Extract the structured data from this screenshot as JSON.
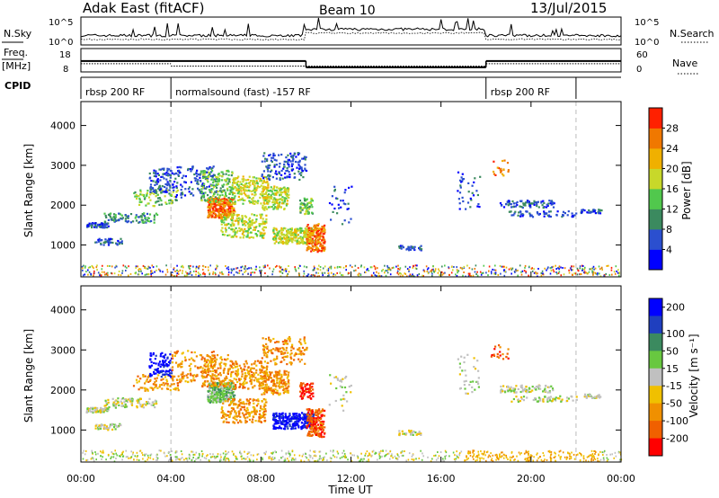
{
  "header": {
    "title": "Adak East (fitACF)",
    "beam": "Beam 10",
    "date": "13/Jul/2015"
  },
  "top_panels": {
    "nsky_label": "N.Sky",
    "nsearch_label": "N.Search",
    "nsky_ticks": [
      "10^5",
      "10^0"
    ],
    "nsearch_ticks": [
      "10^5",
      "10^0"
    ],
    "freq_label": "Freq.",
    "freq_unit": "[MHz]",
    "freq_ticks": [
      "18",
      "8"
    ],
    "nave_label": "Nave",
    "nave_ticks": [
      "60",
      "0"
    ],
    "cpid_label": "CPID",
    "cpid_segments": [
      {
        "label": "rbsp 200 RF",
        "start": 0,
        "end": 4
      },
      {
        "label": "normalsound (fast) -157 RF",
        "start": 4,
        "end": 18
      },
      {
        "label": "rbsp 200 RF",
        "start": 18,
        "end": 22
      }
    ],
    "freq_series": [
      {
        "start": 0,
        "end": 10,
        "value": 14.2
      },
      {
        "start": 10,
        "end": 18,
        "value": 10.3
      },
      {
        "start": 18,
        "end": 24,
        "value": 14.2
      }
    ],
    "nave_series": [
      {
        "start": 0,
        "end": 4,
        "value": 22
      },
      {
        "start": 4,
        "end": 18,
        "value": 15
      },
      {
        "start": 18,
        "end": 24,
        "value": 22
      }
    ]
  },
  "chart_data": [
    {
      "type": "heatmap",
      "parameter": "power",
      "ylabel": "Slant Range [km]",
      "ylim": [
        200,
        4600
      ],
      "yticks": [
        "1000",
        "2000",
        "3000",
        "4000"
      ],
      "colorbar_label": "Power [dB]",
      "colorbar_ticks": [
        "4",
        "8",
        "12",
        "16",
        "20",
        "24",
        "28"
      ],
      "colors": [
        "#0000ff",
        "#2b4fcf",
        "#3b8a5f",
        "#51c84d",
        "#c8d82a",
        "#f0b000",
        "#f07800",
        "#ff2000"
      ]
    },
    {
      "type": "heatmap",
      "parameter": "velocity",
      "ylabel": "Slant Range [km]",
      "ylim": [
        200,
        4600
      ],
      "yticks": [
        "1000",
        "2000",
        "3000",
        "4000"
      ],
      "colorbar_label": "Velocity [m s⁻¹]",
      "colorbar_ticks": [
        "200",
        "100",
        "50",
        "15",
        "-15",
        "-50",
        "-100",
        "-200"
      ],
      "colors": [
        "#0000ff",
        "#1f3fbf",
        "#3b8a5f",
        "#68c840",
        "#c0c0c0",
        "#f0c000",
        "#f09000",
        "#f06000",
        "#ff0000"
      ]
    }
  ],
  "xaxis": {
    "label": "Time UT",
    "ticks": [
      "00:00",
      "04:00",
      "08:00",
      "12:00",
      "16:00",
      "20:00",
      "00:00"
    ],
    "xlim": [
      0,
      24
    ]
  }
}
